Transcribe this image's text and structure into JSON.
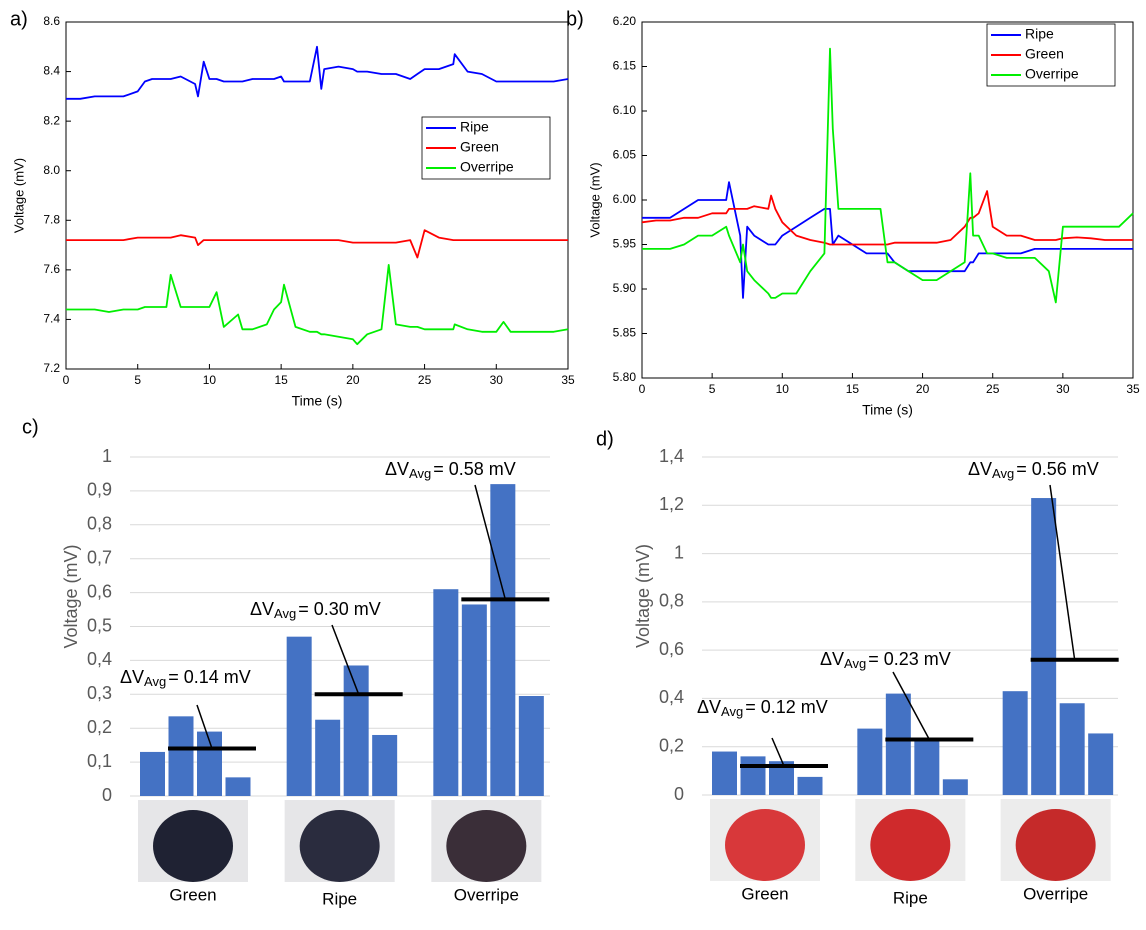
{
  "chart_data": [
    {
      "type": "line",
      "panel_label": "a)",
      "xlabel": "Time (s)",
      "ylabel": "Voltage (mV)",
      "x": [
        0,
        1,
        2,
        3,
        4,
        5,
        5.5,
        6,
        7,
        7.3,
        8,
        9,
        9.2,
        9.6,
        10,
        10.5,
        11,
        12,
        12.3,
        13,
        14,
        14.5,
        15,
        15.2,
        16,
        17,
        17.5,
        17.8,
        18,
        19,
        20,
        20.3,
        21,
        22,
        22.5,
        23,
        24,
        24.5,
        25,
        26,
        27,
        27.1,
        28,
        29,
        30,
        30.5,
        31,
        32,
        33,
        34,
        35
      ],
      "series": [
        {
          "name": "Ripe",
          "color": "#0000ff",
          "values": [
            8.29,
            8.29,
            8.3,
            8.3,
            8.3,
            8.32,
            8.36,
            8.37,
            8.37,
            8.37,
            8.38,
            8.35,
            8.3,
            8.44,
            8.37,
            8.37,
            8.36,
            8.36,
            8.36,
            8.37,
            8.37,
            8.37,
            8.38,
            8.36,
            8.36,
            8.36,
            8.5,
            8.33,
            8.41,
            8.42,
            8.41,
            8.4,
            8.4,
            8.39,
            8.39,
            8.39,
            8.37,
            8.39,
            8.41,
            8.41,
            8.43,
            8.47,
            8.4,
            8.39,
            8.36,
            8.36,
            8.36,
            8.36,
            8.36,
            8.36,
            8.37
          ]
        },
        {
          "name": "Green",
          "color": "#ff0000",
          "values": [
            7.72,
            7.72,
            7.72,
            7.72,
            7.72,
            7.73,
            7.73,
            7.73,
            7.73,
            7.73,
            7.74,
            7.73,
            7.7,
            7.72,
            7.72,
            7.72,
            7.72,
            7.72,
            7.72,
            7.72,
            7.72,
            7.72,
            7.72,
            7.72,
            7.72,
            7.72,
            7.72,
            7.72,
            7.72,
            7.72,
            7.71,
            7.71,
            7.71,
            7.71,
            7.71,
            7.71,
            7.72,
            7.65,
            7.76,
            7.73,
            7.72,
            7.72,
            7.72,
            7.72,
            7.72,
            7.72,
            7.72,
            7.72,
            7.72,
            7.72,
            7.72
          ]
        },
        {
          "name": "Overripe",
          "color": "#00ee00",
          "values": [
            7.44,
            7.44,
            7.44,
            7.43,
            7.44,
            7.44,
            7.45,
            7.45,
            7.45,
            7.58,
            7.45,
            7.45,
            7.45,
            7.45,
            7.45,
            7.51,
            7.37,
            7.42,
            7.36,
            7.36,
            7.38,
            7.44,
            7.47,
            7.54,
            7.37,
            7.35,
            7.35,
            7.34,
            7.34,
            7.33,
            7.32,
            7.3,
            7.34,
            7.36,
            7.62,
            7.38,
            7.37,
            7.37,
            7.36,
            7.36,
            7.36,
            7.38,
            7.36,
            7.35,
            7.35,
            7.39,
            7.35,
            7.35,
            7.35,
            7.35,
            7.36
          ]
        }
      ],
      "xlim": [
        0,
        35
      ],
      "xticks": [
        0,
        5,
        10,
        15,
        20,
        25,
        30,
        35
      ],
      "ylim": [
        7.2,
        8.6
      ],
      "yticks": [
        7.2,
        7.4,
        7.6,
        7.8,
        {
          "value": 8,
          "label": "8.0"
        },
        8.2,
        8.4,
        8.6
      ],
      "legend": "center-right",
      "grid": false
    },
    {
      "type": "line",
      "panel_label": "b)",
      "xlabel": "Time (s)",
      "ylabel": "Voltage (mV)",
      "x": [
        0,
        1,
        2,
        3,
        4,
        5,
        6,
        6.2,
        7,
        7.2,
        7.5,
        8,
        9,
        9.2,
        9.5,
        10,
        11,
        12,
        13,
        13.4,
        13.6,
        14,
        15,
        16,
        17,
        17.5,
        18,
        19,
        20,
        21,
        22,
        23,
        23.4,
        23.6,
        24,
        24.6,
        25,
        26,
        27,
        28,
        29,
        29.5,
        30,
        31,
        32,
        33,
        34,
        35
      ],
      "series": [
        {
          "name": "Ripe",
          "color": "#0000ff",
          "values": [
            5.98,
            5.98,
            5.98,
            5.99,
            6,
            6,
            6,
            6.02,
            5.96,
            5.89,
            5.97,
            5.96,
            5.95,
            5.95,
            5.95,
            5.96,
            5.97,
            5.98,
            5.99,
            5.99,
            5.95,
            5.96,
            5.95,
            5.94,
            5.94,
            5.94,
            5.93,
            5.92,
            5.92,
            5.92,
            5.92,
            5.92,
            5.93,
            5.93,
            5.94,
            5.94,
            5.94,
            5.94,
            5.94,
            5.945,
            5.945,
            5.945,
            5.945,
            5.945,
            5.945,
            5.945,
            5.945,
            5.945
          ]
        },
        {
          "name": "Green",
          "color": "#ff0000",
          "values": [
            5.975,
            5.977,
            5.977,
            5.98,
            5.98,
            5.985,
            5.985,
            5.99,
            5.99,
            5.99,
            5.99,
            5.993,
            5.99,
            6.005,
            5.99,
            5.975,
            5.96,
            5.955,
            5.952,
            5.95,
            5.95,
            5.95,
            5.95,
            5.95,
            5.95,
            5.95,
            5.952,
            5.952,
            5.952,
            5.952,
            5.955,
            5.97,
            5.98,
            5.98,
            5.985,
            6.01,
            5.97,
            5.96,
            5.96,
            5.955,
            5.955,
            5.955,
            5.957,
            5.958,
            5.957,
            5.955,
            5.955,
            5.955
          ]
        },
        {
          "name": "Overripe",
          "color": "#00ee00",
          "values": [
            5.945,
            5.945,
            5.945,
            5.95,
            5.96,
            5.96,
            5.97,
            5.96,
            5.93,
            5.95,
            5.92,
            5.91,
            5.895,
            5.89,
            5.89,
            5.895,
            5.895,
            5.92,
            5.94,
            6.17,
            6.08,
            5.99,
            5.99,
            5.99,
            5.99,
            5.93,
            5.93,
            5.92,
            5.91,
            5.91,
            5.92,
            5.93,
            6.03,
            5.96,
            5.96,
            5.94,
            5.94,
            5.935,
            5.935,
            5.935,
            5.92,
            5.885,
            5.97,
            5.97,
            5.97,
            5.97,
            5.97,
            5.985
          ]
        }
      ],
      "xlim": [
        0,
        35
      ],
      "xticks": [
        0,
        5,
        10,
        15,
        20,
        25,
        30,
        35
      ],
      "ylim": [
        5.8,
        6.2
      ],
      "yticks": [
        {
          "value": 5.8,
          "label": "5.80"
        },
        5.85,
        {
          "value": 5.9,
          "label": "5.90"
        },
        5.95,
        {
          "value": 6,
          "label": "6.00"
        },
        6.05,
        {
          "value": 6.1,
          "label": "6.10"
        },
        6.15,
        {
          "value": 6.2,
          "label": "6.20"
        }
      ],
      "legend": "top-right",
      "grid": false
    },
    {
      "type": "grouped-bar",
      "panel_label": "c)",
      "ylabel": "Voltage (mV)",
      "color": "#4472c4",
      "average_color": "#000000",
      "categories": [
        "Green",
        "Ripe",
        "Overripe"
      ],
      "values": [
        [
          0.13,
          0.235,
          0.19,
          0.055
        ],
        [
          0.47,
          0.225,
          0.385,
          0.18
        ],
        [
          0.61,
          0.565,
          0.92,
          0.295
        ]
      ],
      "averages": [
        0.14,
        0.3,
        0.58
      ],
      "average_labels": [
        {
          "symbol": "ΔV",
          "sub": "Avg",
          "text": "= 0.14 mV"
        },
        {
          "symbol": "ΔV",
          "sub": "Avg",
          "text": "= 0.30 mV"
        },
        {
          "symbol": "ΔV",
          "sub": "Avg",
          "text": "= 0.58 mV"
        }
      ],
      "ylim": [
        0,
        1
      ],
      "yticks": [
        0,
        {
          "value": 0.1,
          "label": "0,1"
        },
        {
          "value": 0.2,
          "label": "0,2"
        },
        {
          "value": 0.3,
          "label": "0,3"
        },
        {
          "value": 0.4,
          "label": "0,4"
        },
        {
          "value": 0.5,
          "label": "0,5"
        },
        {
          "value": 0.6,
          "label": "0,6"
        },
        {
          "value": 0.7,
          "label": "0,7"
        },
        {
          "value": 0.8,
          "label": "0,8"
        },
        {
          "value": 0.9,
          "label": "0,9"
        },
        1
      ],
      "grid": true
    },
    {
      "type": "grouped-bar",
      "panel_label": "d)",
      "ylabel": "Voltage (mV)",
      "color": "#4472c4",
      "average_color": "#000000",
      "categories": [
        "Green",
        "Ripe",
        "Overripe"
      ],
      "values": [
        [
          0.18,
          0.16,
          0.14,
          0.075
        ],
        [
          0.275,
          0.42,
          0.23,
          0.065
        ],
        [
          0.43,
          1.23,
          0.38,
          0.255
        ]
      ],
      "averages": [
        0.12,
        0.23,
        0.56
      ],
      "average_labels": [
        {
          "symbol": "ΔV",
          "sub": "Avg",
          "text": "= 0.12 mV"
        },
        {
          "symbol": "ΔV",
          "sub": "Avg",
          "text": "= 0.23 mV"
        },
        {
          "symbol": "ΔV",
          "sub": "Avg",
          "text": "= 0.56 mV"
        }
      ],
      "ylim": [
        0,
        1.4
      ],
      "yticks": [
        0,
        {
          "value": 0.2,
          "label": "0,2"
        },
        {
          "value": 0.4,
          "label": "0,4"
        },
        {
          "value": 0.6,
          "label": "0,6"
        },
        {
          "value": 0.8,
          "label": "0,8"
        },
        1,
        {
          "value": 1.2,
          "label": "1,2"
        },
        {
          "value": 1.4,
          "label": "1,4"
        }
      ],
      "grid": true
    }
  ]
}
